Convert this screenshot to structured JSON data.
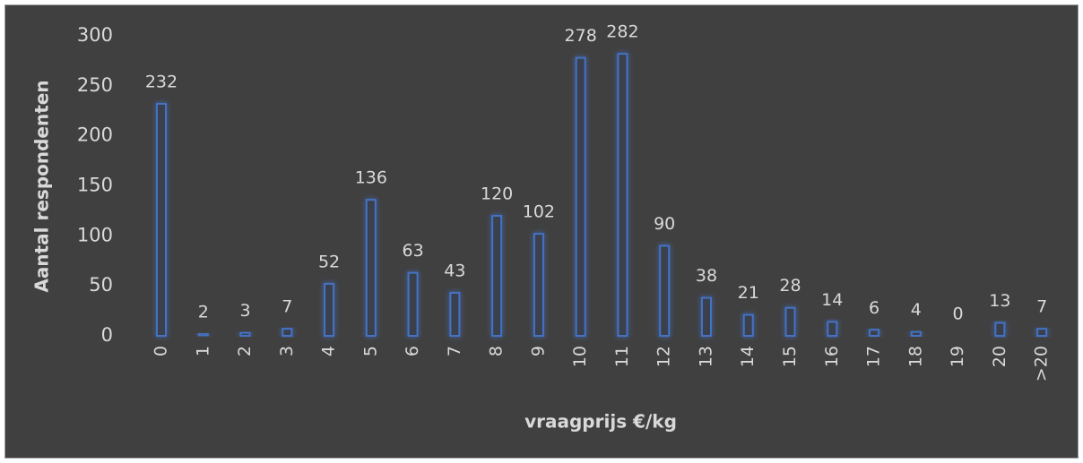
{
  "chart_data": {
    "type": "bar",
    "categories": [
      "0",
      "1",
      "2",
      "3",
      "4",
      "5",
      "6",
      "7",
      "8",
      "9",
      "10",
      "11",
      "12",
      "13",
      "14",
      "15",
      "16",
      "17",
      "18",
      "19",
      "20",
      ">20"
    ],
    "values": [
      232,
      2,
      3,
      7,
      52,
      136,
      63,
      43,
      120,
      102,
      278,
      282,
      90,
      38,
      21,
      28,
      14,
      6,
      4,
      0,
      13,
      7
    ],
    "color": "#4472c4",
    "x_label": "vraagprijs €/kg",
    "y_label": "Aantal respondenten",
    "ylim": [
      0,
      300
    ],
    "yticks": [
      0,
      50,
      100,
      150,
      200,
      250,
      300
    ],
    "grid": false
  }
}
